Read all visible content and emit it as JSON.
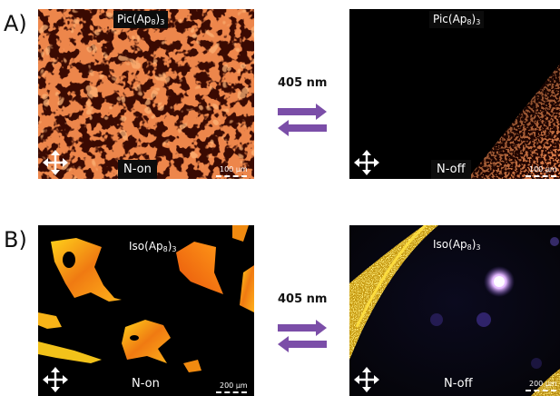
{
  "panel_a": {
    "label": "A)",
    "left_image": {
      "compound": "Pic(Ap",
      "subscript": "8",
      "suffix": ")",
      "subscript2": "3",
      "state": "N-on",
      "scale": "100 μm",
      "texture_color": "#c43a10"
    },
    "right_image": {
      "compound": "Pic(Ap",
      "subscript": "8",
      "suffix": ")",
      "subscript2": "3",
      "state": "N-off",
      "scale": "100 μm",
      "texture_color": "#c43a10"
    },
    "wavelength": "405 nm"
  },
  "panel_b": {
    "label": "B)",
    "left_image": {
      "compound": "Iso(Ap",
      "subscript": "8",
      "suffix": ")",
      "subscript2": "3",
      "state": "N-on",
      "scale": "200 μm",
      "texture_color": "#f08a10"
    },
    "right_image": {
      "compound": "Iso(Ap",
      "subscript": "8",
      "suffix": ")",
      "subscript2": "3",
      "state": "N-off",
      "scale": "200 μm",
      "texture_color": "#e8c020"
    },
    "wavelength": "405 nm"
  },
  "colors": {
    "arrow": "#7b4ea8",
    "background": "#000000",
    "label_text": "#ffffff"
  },
  "icons": {
    "polarizer": "cross-arrows-icon"
  }
}
